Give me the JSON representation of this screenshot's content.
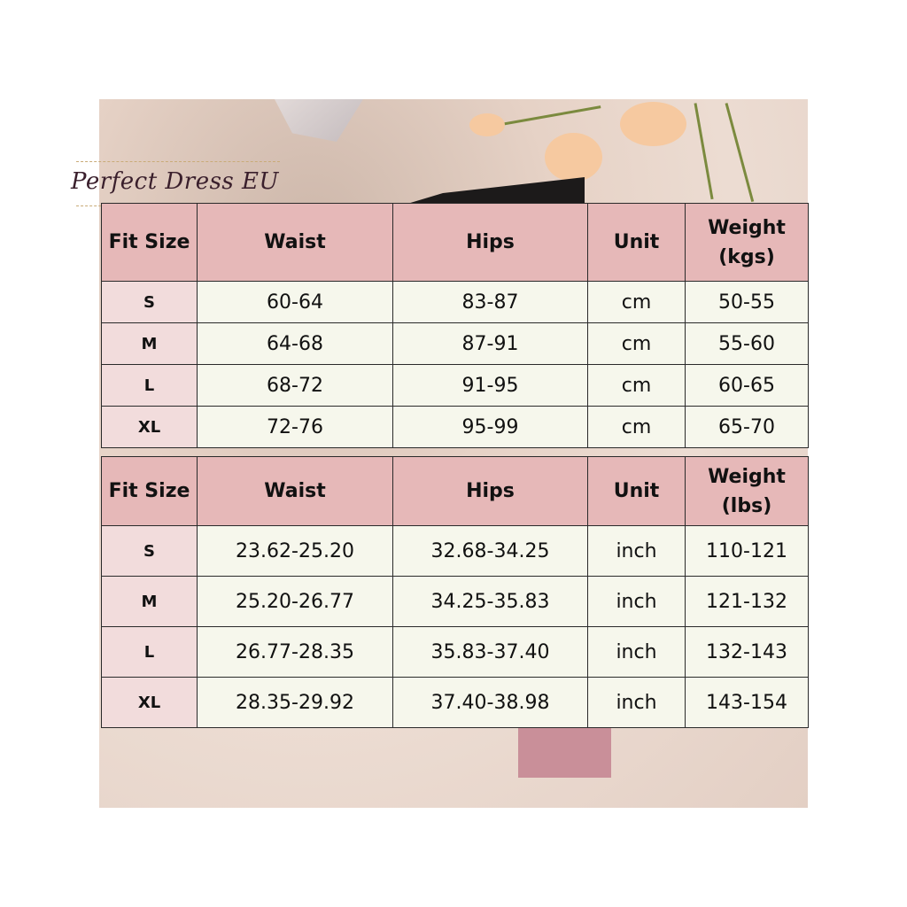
{
  "brand": "Perfect Dress EU",
  "colors": {
    "header": "#e6b8b8",
    "size_column": "#f2dcdc",
    "cell": "#f6f7ec"
  },
  "tables": [
    {
      "headers": [
        "Fit Size",
        "Waist",
        "Hips",
        "Unit",
        "Weight\n(kgs)"
      ],
      "rows": [
        [
          "S",
          "60-64",
          "83-87",
          "cm",
          "50-55"
        ],
        [
          "M",
          "64-68",
          "87-91",
          "cm",
          "55-60"
        ],
        [
          "L",
          "68-72",
          "91-95",
          "cm",
          "60-65"
        ],
        [
          "XL",
          "72-76",
          "95-99",
          "cm",
          "65-70"
        ]
      ]
    },
    {
      "headers": [
        "Fit Size",
        "Waist",
        "Hips",
        "Unit",
        "Weight\n(lbs)"
      ],
      "rows": [
        [
          "S",
          "23.62-25.20",
          "32.68-34.25",
          "inch",
          "110-121"
        ],
        [
          "M",
          "25.20-26.77",
          "34.25-35.83",
          "inch",
          "121-132"
        ],
        [
          "L",
          "26.77-28.35",
          "35.83-37.40",
          "inch",
          "132-143"
        ],
        [
          "XL",
          "28.35-29.92",
          "37.40-38.98",
          "inch",
          "143-154"
        ]
      ]
    }
  ]
}
